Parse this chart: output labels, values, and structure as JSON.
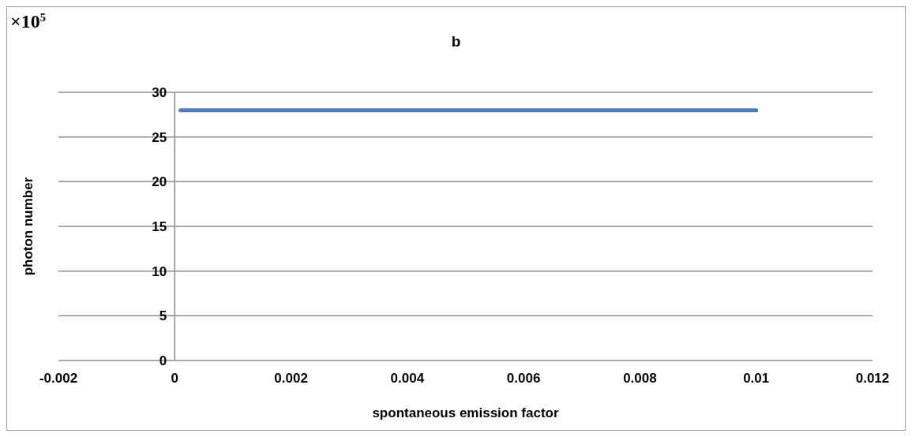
{
  "chart_data": {
    "type": "line",
    "title": "b",
    "xlabel": "spontaneous emission factor",
    "ylabel": "photon number",
    "annotations": [
      "×10$^{5}$"
    ],
    "series": [
      {
        "color": "#4a7ebb",
        "x": [
          0.0001,
          0.01
        ],
        "values": [
          28,
          28
        ]
      }
    ],
    "xlim": [
      -0.002,
      0.012
    ],
    "xticks": [
      -0.002,
      0,
      0.002,
      0.004,
      0.006,
      0.008,
      0.01,
      0.012
    ],
    "ylim": [
      0,
      30
    ],
    "yticks": [
      0,
      5,
      10,
      15,
      20,
      25,
      30
    ],
    "grid": "y",
    "marker": "none",
    "line_style": "solid"
  }
}
